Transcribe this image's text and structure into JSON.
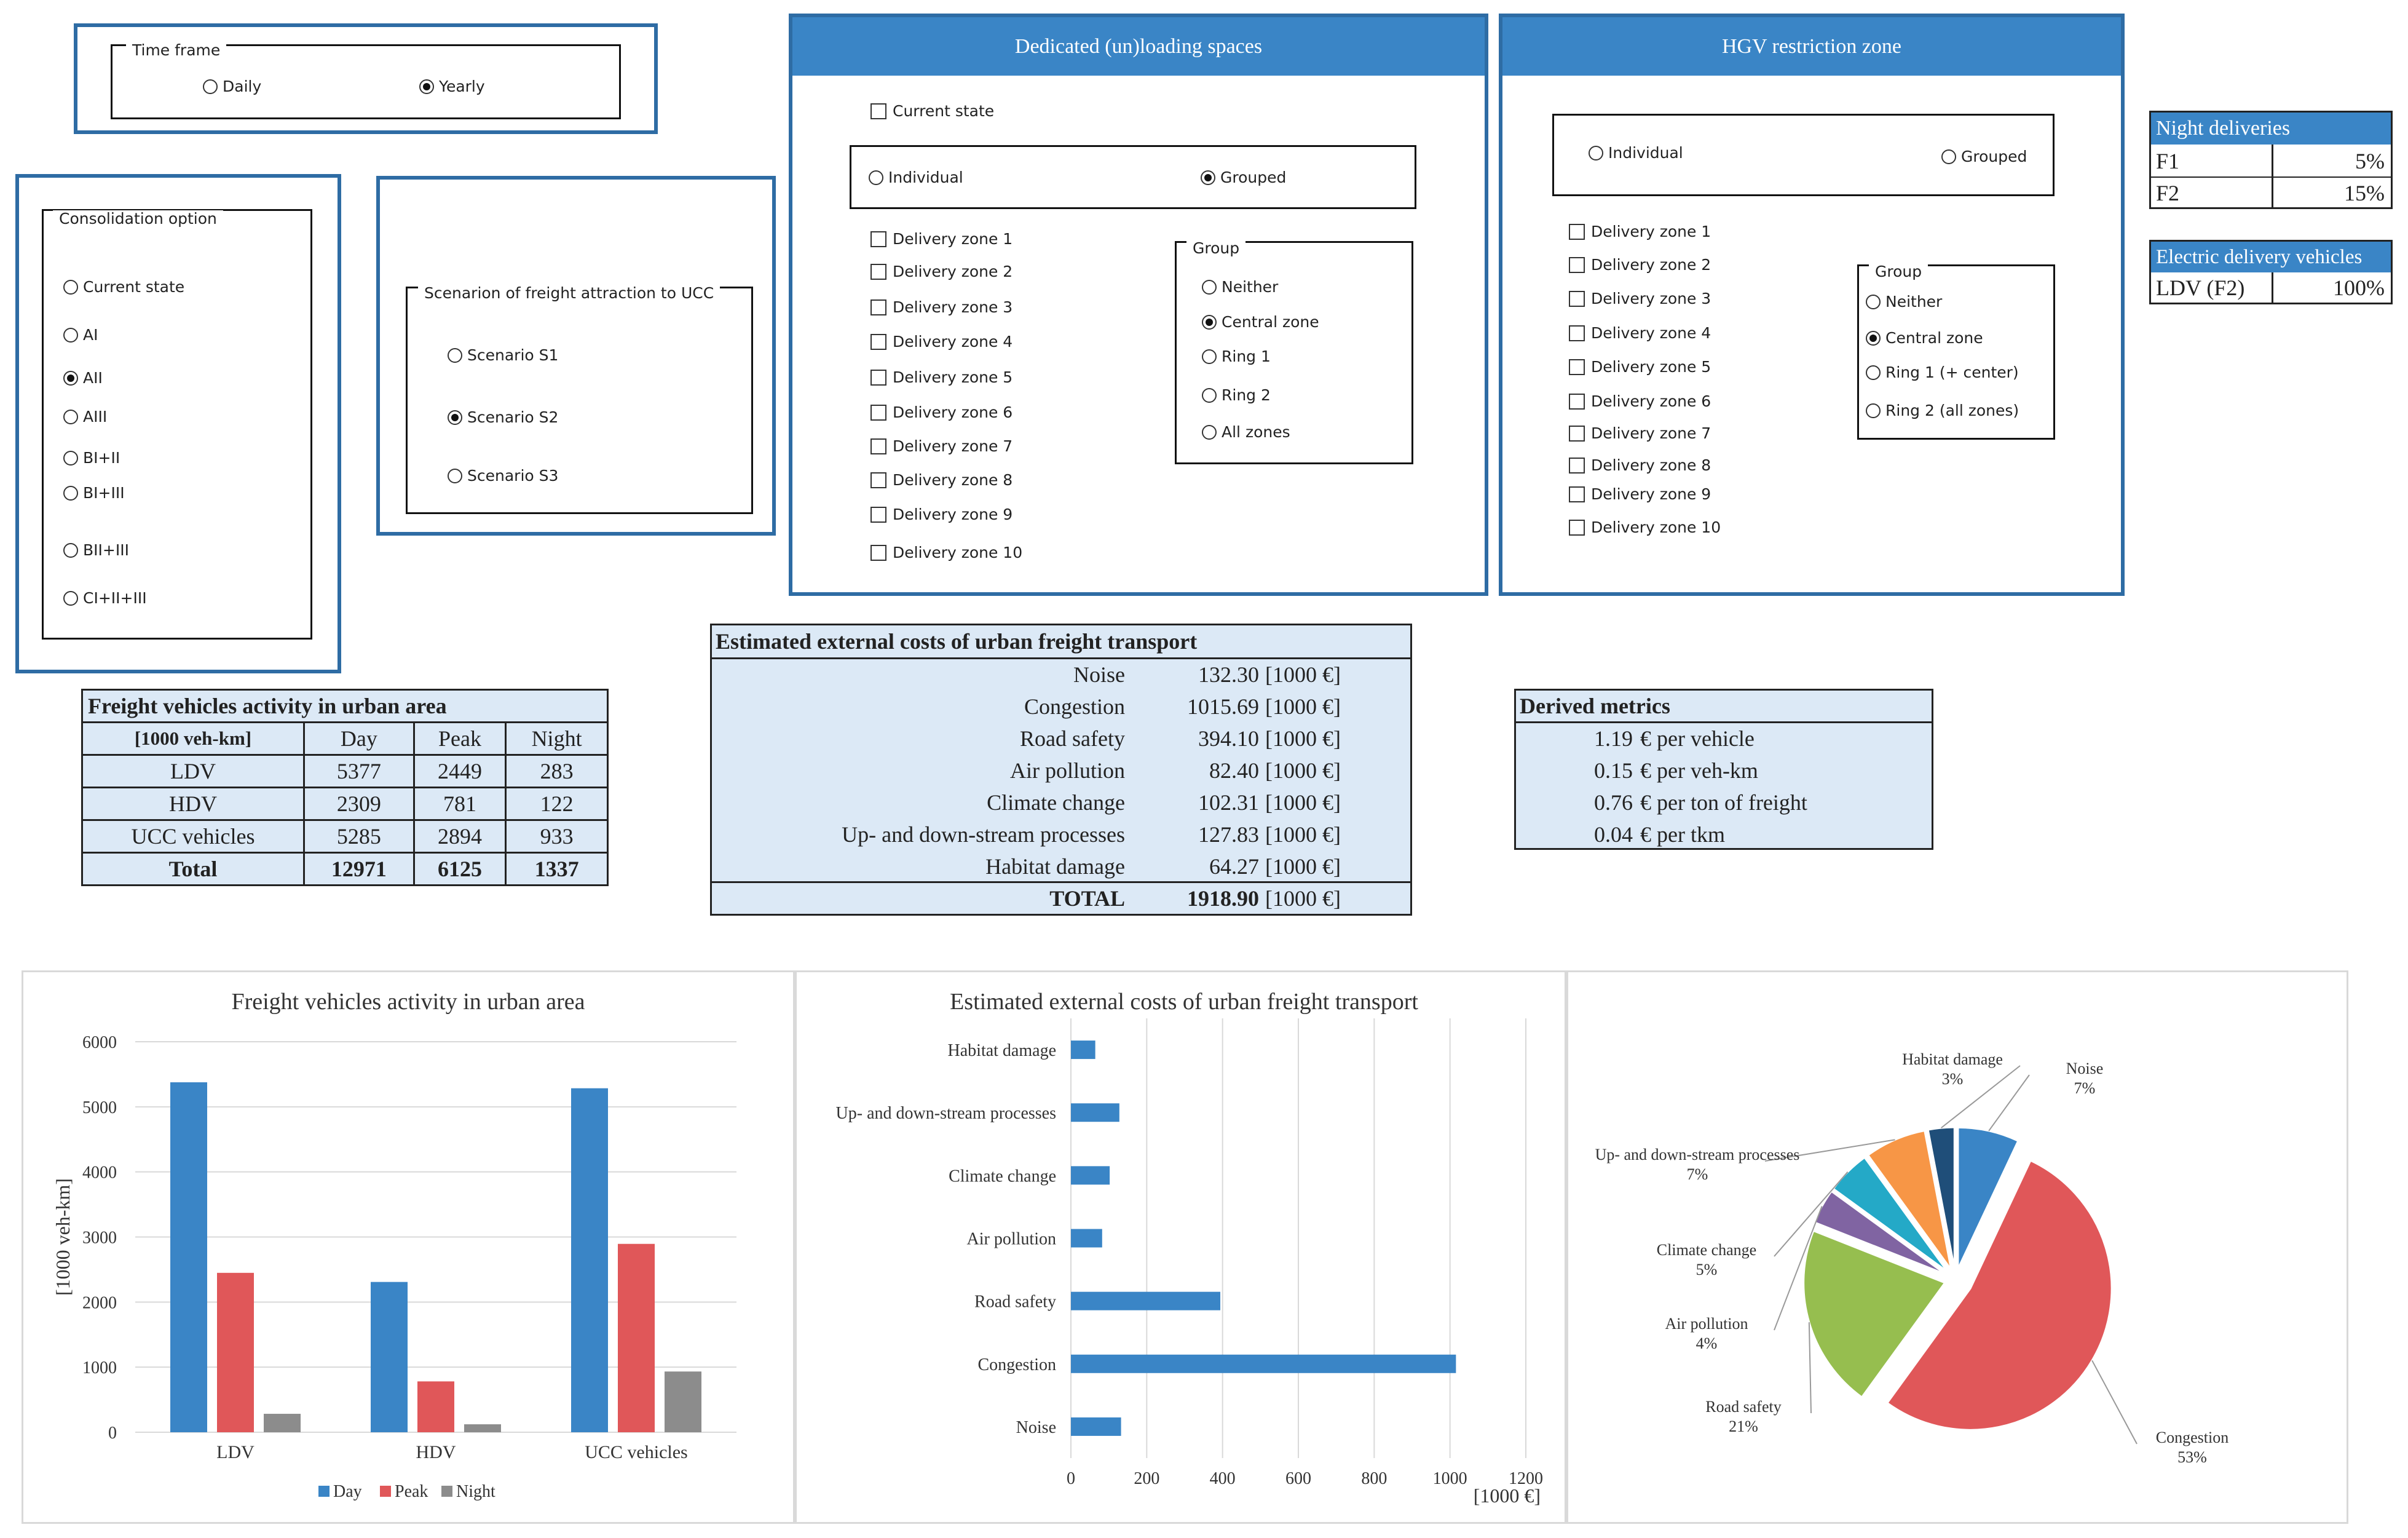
{
  "time_frame": {
    "legend": "Time frame",
    "options": [
      {
        "label": "Daily",
        "selected": false
      },
      {
        "label": "Yearly",
        "selected": true
      }
    ]
  },
  "consolidation": {
    "legend": "Consolidation option",
    "options": [
      {
        "label": "Current state",
        "selected": false
      },
      {
        "label": "AI",
        "selected": false
      },
      {
        "label": "AII",
        "selected": true
      },
      {
        "label": "AIII",
        "selected": false
      },
      {
        "label": "BI+II",
        "selected": false
      },
      {
        "label": "BI+III",
        "selected": false
      },
      {
        "label": "BII+III",
        "selected": false
      },
      {
        "label": "CI+II+III",
        "selected": false
      }
    ]
  },
  "scenario": {
    "legend": "Scenarion of freight attraction to UCC",
    "options": [
      {
        "label": "Scenario S1",
        "selected": false
      },
      {
        "label": "Scenario S2",
        "selected": true
      },
      {
        "label": "Scenario S3",
        "selected": false
      }
    ]
  },
  "loading": {
    "title": "Dedicated (un)loading spaces",
    "current_state": "Current state",
    "mode": [
      {
        "label": "Individual",
        "selected": false
      },
      {
        "label": "Grouped",
        "selected": true
      }
    ],
    "zones": [
      "Delivery zone 1",
      "Delivery zone 2",
      "Delivery zone 3",
      "Delivery zone 4",
      "Delivery zone 5",
      "Delivery zone 6",
      "Delivery zone 7",
      "Delivery zone 8",
      "Delivery zone 9",
      "Delivery zone 10"
    ],
    "group_legend": "Group",
    "group": [
      {
        "label": "Neither",
        "selected": false
      },
      {
        "label": "Central zone",
        "selected": true
      },
      {
        "label": "Ring 1",
        "selected": false
      },
      {
        "label": "Ring 2",
        "selected": false
      },
      {
        "label": "All zones",
        "selected": false
      }
    ]
  },
  "hgv": {
    "title": "HGV restriction zone",
    "mode": [
      {
        "label": "Individual",
        "selected": false
      },
      {
        "label": "Grouped",
        "selected": false
      }
    ],
    "zones": [
      "Delivery zone 1",
      "Delivery zone 2",
      "Delivery zone 3",
      "Delivery zone 4",
      "Delivery zone 5",
      "Delivery zone 6",
      "Delivery zone 7",
      "Delivery zone 8",
      "Delivery zone 9",
      "Delivery zone 10"
    ],
    "group_legend": "Group",
    "group": [
      {
        "label": "Neither",
        "selected": false
      },
      {
        "label": "Central zone",
        "selected": true
      },
      {
        "label": "Ring 1 (+ center)",
        "selected": false
      },
      {
        "label": "Ring 2 (all zones)",
        "selected": false
      }
    ]
  },
  "night": {
    "title": "Night deliveries",
    "rows": [
      {
        "label": "F1",
        "value": "5%"
      },
      {
        "label": "F2",
        "value": "15%"
      }
    ]
  },
  "electric": {
    "title": "Electric delivery vehicles",
    "rows": [
      {
        "label": "LDV (F2)",
        "value": "100%"
      }
    ]
  },
  "activity_table": {
    "title": "Freight vehicles activity in urban area",
    "headers": [
      "[1000 veh-km]",
      "Day",
      "Peak",
      "Night"
    ],
    "rows": [
      [
        "LDV",
        "5377",
        "2449",
        "283"
      ],
      [
        "HDV",
        "2309",
        "781",
        "122"
      ],
      [
        "UCC vehicles",
        "5285",
        "2894",
        "933"
      ]
    ],
    "total": [
      "Total",
      "12971",
      "6125",
      "1337"
    ]
  },
  "costs_table": {
    "title": "Estimated external costs of urban freight transport",
    "rows": [
      [
        "Noise",
        "132.30",
        "[1000 €]"
      ],
      [
        "Congestion",
        "1015.69",
        "[1000 €]"
      ],
      [
        "Road safety",
        "394.10",
        "[1000 €]"
      ],
      [
        "Air pollution",
        "82.40",
        "[1000 €]"
      ],
      [
        "Climate change",
        "102.31",
        "[1000 €]"
      ],
      [
        "Up- and down-stream processes",
        "127.83",
        "[1000 €]"
      ],
      [
        "Habitat damage",
        "64.27",
        "[1000 €]"
      ]
    ],
    "total": [
      "TOTAL",
      "1918.90",
      "[1000 €]"
    ]
  },
  "derived": {
    "title": "Derived metrics",
    "rows": [
      [
        "1.19",
        "€ per vehicle"
      ],
      [
        "0.15",
        "€ per veh-km"
      ],
      [
        "0.76",
        "€ per ton of freight"
      ],
      [
        "0.04",
        "€ per tkm"
      ]
    ]
  },
  "colors": {
    "panel_blue": "#3a85c6",
    "day": "#3a85c6",
    "peak": "#e05759",
    "night": "#8c8c8c",
    "bar": "#3a85c6"
  },
  "chart_data": [
    {
      "type": "bar",
      "title": "Freight vehicles activity in urban area",
      "ylabel": "[1000 veh-km]",
      "categories": [
        "LDV",
        "HDV",
        "UCC vehicles"
      ],
      "series": [
        {
          "name": "Day",
          "values": [
            5377,
            2309,
            5285
          ]
        },
        {
          "name": "Peak",
          "values": [
            2449,
            781,
            2894
          ]
        },
        {
          "name": "Night",
          "values": [
            283,
            122,
            933
          ]
        }
      ],
      "ylim": [
        0,
        6000
      ],
      "yticks": [
        "0",
        "1000",
        "2000",
        "3000",
        "4000",
        "5000",
        "6000"
      ],
      "legend_position": "bottom"
    },
    {
      "type": "bar",
      "orientation": "horizontal",
      "title": "Estimated external costs of urban freight transport",
      "xlabel": "[1000 €]",
      "categories": [
        "Habitat damage",
        "Up- and down-stream processes",
        "Climate change",
        "Air pollution",
        "Road safety",
        "Congestion",
        "Noise"
      ],
      "values": [
        64.27,
        127.83,
        102.31,
        82.4,
        394.1,
        1015.69,
        132.3
      ],
      "xlim": [
        0,
        1200
      ],
      "xticks": [
        "0",
        "200",
        "400",
        "600",
        "800",
        "1000",
        "1200"
      ]
    },
    {
      "type": "pie",
      "slices": [
        {
          "label": "Noise",
          "pct": "7%",
          "value": 7,
          "color": "#3a85c6"
        },
        {
          "label": "Congestion",
          "pct": "53%",
          "value": 53,
          "color": "#e05759"
        },
        {
          "label": "Road safety",
          "pct": "21%",
          "value": 21,
          "color": "#96be4f"
        },
        {
          "label": "Air pollution",
          "pct": "4%",
          "value": 4,
          "color": "#8064a2"
        },
        {
          "label": "Climate  change",
          "pct": "5%",
          "value": 5,
          "color": "#24a9c7"
        },
        {
          "label": "Up- and down-stream processes",
          "pct": "7%",
          "value": 7,
          "color": "#f79646"
        },
        {
          "label": "Habitat damage",
          "pct": "3%",
          "value": 3,
          "color": "#1f4e79"
        }
      ]
    }
  ]
}
